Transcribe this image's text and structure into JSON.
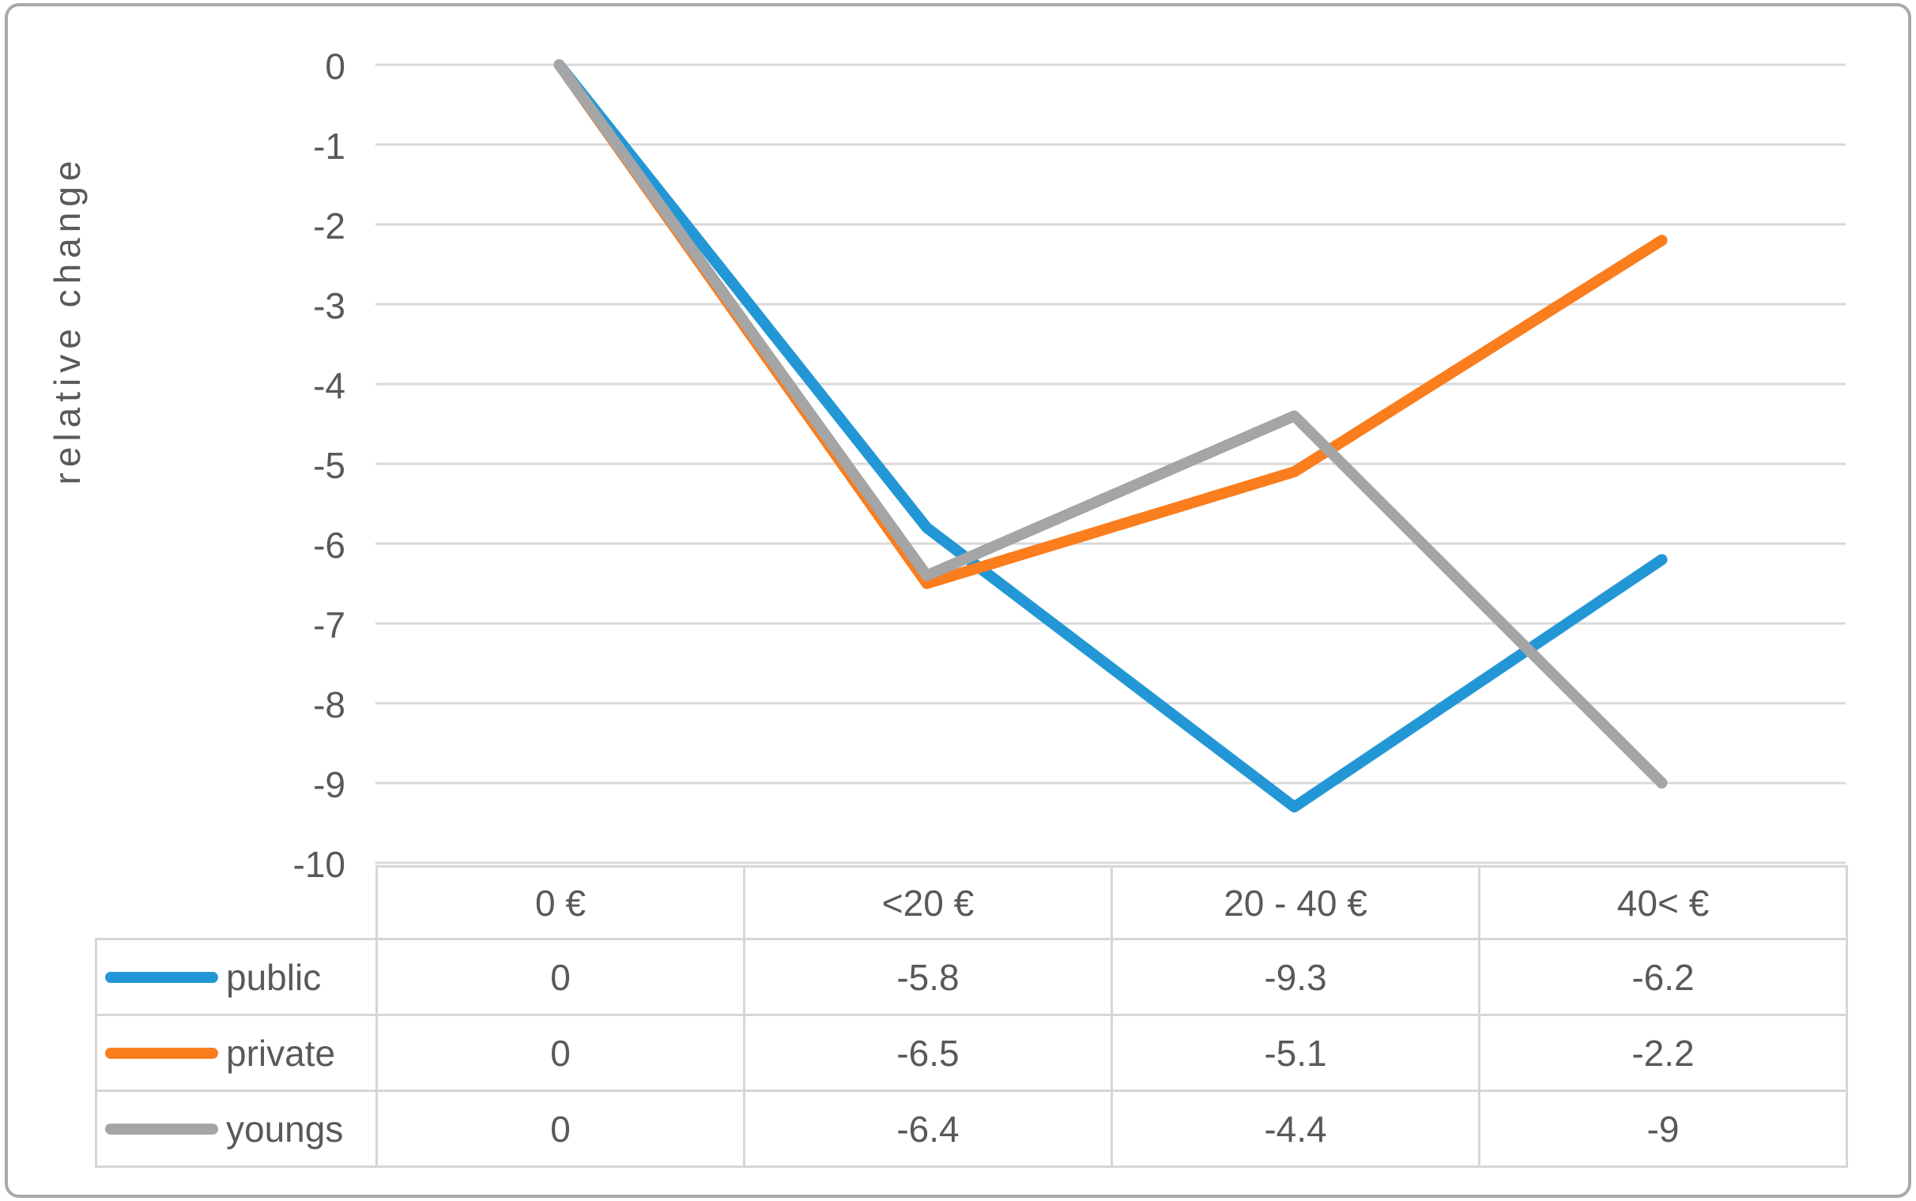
{
  "figure": {
    "background": "#ffffff",
    "border_color": "#a9a9a9"
  },
  "styles": {
    "text_color": "#595959",
    "grid_color": "#d9d9d9",
    "table_border_color": "#d6d6d6"
  },
  "chart_data": {
    "type": "line",
    "title": "",
    "xlabel": "",
    "ylabel": "relative change",
    "categories": [
      "0 €",
      "<20 €",
      "20 - 40 €",
      "40< €"
    ],
    "series": [
      {
        "name": "public",
        "color": "#2397d6",
        "values": [
          0,
          -5.8,
          -9.3,
          -6.2
        ]
      },
      {
        "name": "private",
        "color": "#fa7d1e",
        "values": [
          0,
          -6.5,
          -5.1,
          -2.2
        ]
      },
      {
        "name": "youngs",
        "color": "#a5a5a5",
        "values": [
          0,
          -6.4,
          -4.4,
          -9
        ]
      }
    ],
    "ylim": [
      -10,
      0
    ],
    "y_ticks": [
      0,
      -1,
      -2,
      -3,
      -4,
      -5,
      -6,
      -7,
      -8,
      -9,
      -10
    ],
    "grid": true,
    "legend_position": "data-table-left",
    "data_table_shown": true
  }
}
